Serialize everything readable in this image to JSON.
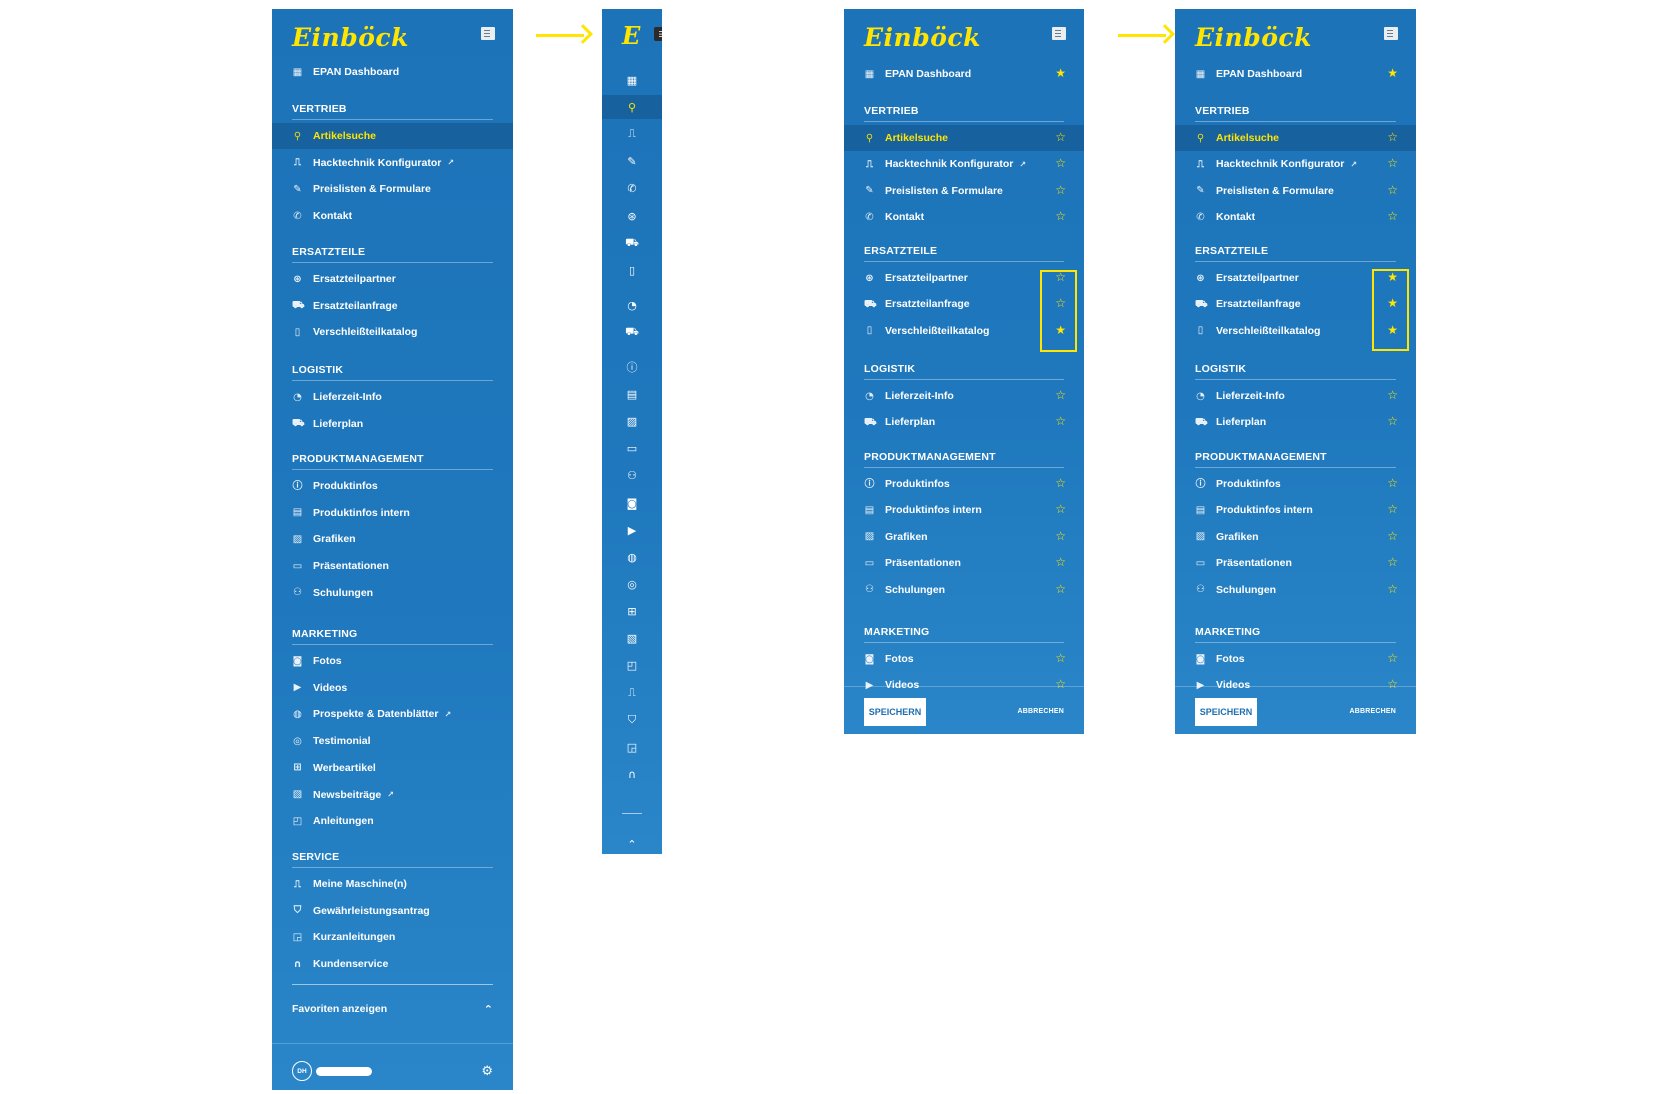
{
  "brand": {
    "logo": "Einböck",
    "collapsed_logo": "E"
  },
  "colors": {
    "panel": "#1d73b8",
    "accent": "#ffe500",
    "active_row": "#17629e"
  },
  "menu": {
    "dashboard": {
      "label": "EPAN Dashboard",
      "icon": "dashboard-icon"
    },
    "sections": [
      {
        "title": "VERTRIEB",
        "items": [
          {
            "label": "Artikelsuche",
            "icon": "search-icon",
            "active": true
          },
          {
            "label": "Hacktechnik Konfigurator",
            "icon": "machine-icon",
            "external": true
          },
          {
            "label": "Preislisten & Formulare",
            "icon": "form-icon"
          },
          {
            "label": "Kontakt",
            "icon": "phone-icon"
          }
        ]
      },
      {
        "title": "ERSATZTEILE",
        "items": [
          {
            "label": "Ersatzteilpartner",
            "icon": "partner-icon"
          },
          {
            "label": "Ersatzteilanfrage",
            "icon": "cart-icon"
          },
          {
            "label": "Verschleißteilkatalog",
            "icon": "catalog-icon"
          }
        ]
      },
      {
        "title": "LOGISTIK",
        "items": [
          {
            "label": "Lieferzeit-Info",
            "icon": "clock-icon"
          },
          {
            "label": "Lieferplan",
            "icon": "truck-icon"
          }
        ]
      },
      {
        "title": "PRODUKTMANAGEMENT",
        "items": [
          {
            "label": "Produktinfos",
            "icon": "info-icon"
          },
          {
            "label": "Produktinfos intern",
            "icon": "internal-info-icon"
          },
          {
            "label": "Grafiken",
            "icon": "image-icon"
          },
          {
            "label": "Präsentationen",
            "icon": "presentation-icon"
          },
          {
            "label": "Schulungen",
            "icon": "training-icon"
          }
        ]
      },
      {
        "title": "MARKETING",
        "items": [
          {
            "label": "Fotos",
            "icon": "camera-icon"
          },
          {
            "label": "Videos",
            "icon": "video-icon"
          },
          {
            "label": "Prospekte & Datenblätter",
            "icon": "brochure-icon",
            "external": true
          },
          {
            "label": "Testimonial",
            "icon": "testimonial-icon"
          },
          {
            "label": "Werbeartikel",
            "icon": "gift-icon"
          },
          {
            "label": "Newsbeiträge",
            "icon": "news-icon",
            "external": true
          },
          {
            "label": "Anleitungen",
            "icon": "manual-icon"
          }
        ]
      },
      {
        "title": "SERVICE",
        "items": [
          {
            "label": "Meine Maschine(n)",
            "icon": "machine-icon"
          },
          {
            "label": "Gewährleistungsantrag",
            "icon": "shield-icon"
          },
          {
            "label": "Kurzanleitungen",
            "icon": "quick-guide-icon"
          },
          {
            "label": "Kundenservice",
            "icon": "headset-icon"
          }
        ]
      }
    ]
  },
  "footer": {
    "favorites_label": "Favoriten anzeigen",
    "avatar_initials": "DH",
    "settings_icon": "gear-icon"
  },
  "edit_mode": {
    "save_label": "SPEICHERN",
    "cancel_label": "ABBRECHEN",
    "panel_before": {
      "starred": [
        "EPAN Dashboard",
        "Verschleißteilkatalog"
      ]
    },
    "panel_after": {
      "starred": [
        "EPAN Dashboard",
        "Ersatzteilpartner",
        "Ersatzteilanfrage",
        "Verschleißteilkatalog"
      ]
    }
  },
  "star_glyphs": {
    "filled": "★",
    "empty": "☆"
  },
  "misc": {
    "external_glyph": "↗",
    "chevron_up": "⌃"
  }
}
